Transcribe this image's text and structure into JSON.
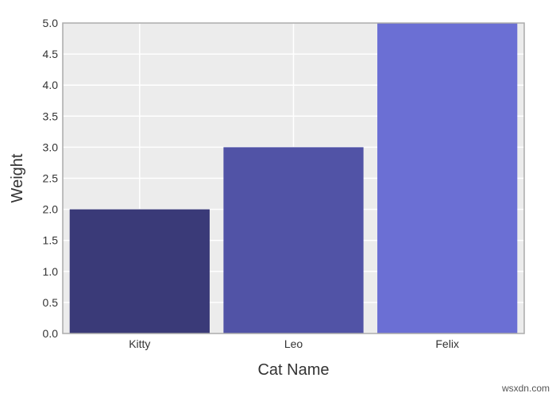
{
  "chart_data": {
    "type": "bar",
    "categories": [
      "Kitty",
      "Leo",
      "Felix"
    ],
    "values": [
      2,
      3,
      5
    ],
    "colors": [
      "#3a3a78",
      "#5153a6",
      "#6b6fd4"
    ],
    "xlabel": "Cat Name",
    "ylabel": "Weight",
    "ylim": [
      0,
      5
    ],
    "yticks": [
      "0.0",
      "0.5",
      "1.0",
      "1.5",
      "2.0",
      "2.5",
      "3.0",
      "3.5",
      "4.0",
      "4.5",
      "5.0"
    ],
    "grid": true,
    "background": "#ececec"
  },
  "watermark": "wsxdn.com"
}
